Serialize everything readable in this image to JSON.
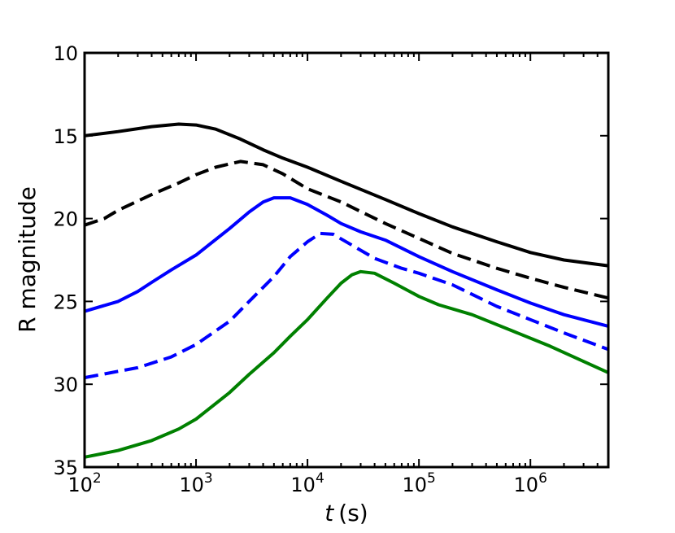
{
  "chart_data": {
    "type": "line",
    "title": "",
    "xlabel": "t",
    "xlabel_unit": "(s)",
    "ylabel": "R magnitude",
    "xscale": "log",
    "xlim": [
      100,
      5000000
    ],
    "ylim": [
      10,
      35
    ],
    "y_inverted": true,
    "grid": false,
    "legend": "none",
    "x_ticks": [
      {
        "value": 100,
        "base": "10",
        "exp": "2"
      },
      {
        "value": 1000,
        "base": "10",
        "exp": "3"
      },
      {
        "value": 10000,
        "base": "10",
        "exp": "4"
      },
      {
        "value": 100000,
        "base": "10",
        "exp": "5"
      },
      {
        "value": 1000000,
        "base": "10",
        "exp": "6"
      }
    ],
    "y_ticks": [
      {
        "value": 10,
        "label": "10"
      },
      {
        "value": 15,
        "label": "15"
      },
      {
        "value": 20,
        "label": "20"
      },
      {
        "value": 25,
        "label": "25"
      },
      {
        "value": 30,
        "label": "30"
      },
      {
        "value": 35,
        "label": "35"
      }
    ],
    "series": [
      {
        "name": "black-solid",
        "color": "#000000",
        "style": "solid",
        "points": [
          [
            100,
            15.0
          ],
          [
            200,
            14.75
          ],
          [
            400,
            14.45
          ],
          [
            700,
            14.3
          ],
          [
            1000,
            14.35
          ],
          [
            1500,
            14.6
          ],
          [
            2500,
            15.2
          ],
          [
            4000,
            15.85
          ],
          [
            6000,
            16.35
          ],
          [
            10000,
            16.9
          ],
          [
            20000,
            17.75
          ],
          [
            50000,
            18.85
          ],
          [
            100000,
            19.7
          ],
          [
            200000,
            20.5
          ],
          [
            500000,
            21.4
          ],
          [
            1000000,
            22.05
          ],
          [
            2000000,
            22.5
          ],
          [
            5000000,
            22.85
          ]
        ]
      },
      {
        "name": "black-dashed",
        "color": "#000000",
        "style": "dashed",
        "points": [
          [
            100,
            20.4
          ],
          [
            150,
            20.0
          ],
          [
            200,
            19.5
          ],
          [
            400,
            18.55
          ],
          [
            700,
            17.85
          ],
          [
            1000,
            17.35
          ],
          [
            1500,
            16.9
          ],
          [
            2500,
            16.55
          ],
          [
            4000,
            16.75
          ],
          [
            6000,
            17.3
          ],
          [
            10000,
            18.2
          ],
          [
            20000,
            19.0
          ],
          [
            50000,
            20.3
          ],
          [
            100000,
            21.2
          ],
          [
            200000,
            22.1
          ],
          [
            500000,
            23.0
          ],
          [
            1000000,
            23.6
          ],
          [
            2000000,
            24.15
          ],
          [
            5000000,
            24.8
          ]
        ]
      },
      {
        "name": "blue-solid",
        "color": "#0000ff",
        "style": "solid",
        "points": [
          [
            100,
            25.6
          ],
          [
            200,
            25.0
          ],
          [
            300,
            24.4
          ],
          [
            400,
            23.85
          ],
          [
            600,
            23.1
          ],
          [
            1000,
            22.2
          ],
          [
            2000,
            20.6
          ],
          [
            3000,
            19.6
          ],
          [
            4000,
            19.0
          ],
          [
            5000,
            18.75
          ],
          [
            7000,
            18.75
          ],
          [
            10000,
            19.15
          ],
          [
            15000,
            19.8
          ],
          [
            20000,
            20.3
          ],
          [
            30000,
            20.8
          ],
          [
            50000,
            21.3
          ],
          [
            100000,
            22.3
          ],
          [
            200000,
            23.2
          ],
          [
            500000,
            24.3
          ],
          [
            1000000,
            25.1
          ],
          [
            2000000,
            25.8
          ],
          [
            5000000,
            26.5
          ]
        ]
      },
      {
        "name": "blue-dashed",
        "color": "#0000ff",
        "style": "dashed",
        "points": [
          [
            100,
            29.6
          ],
          [
            300,
            29.0
          ],
          [
            600,
            28.35
          ],
          [
            1000,
            27.6
          ],
          [
            2000,
            26.2
          ],
          [
            3000,
            25.0
          ],
          [
            5000,
            23.5
          ],
          [
            7000,
            22.3
          ],
          [
            10000,
            21.4
          ],
          [
            13000,
            20.9
          ],
          [
            17000,
            20.95
          ],
          [
            25000,
            21.6
          ],
          [
            40000,
            22.4
          ],
          [
            70000,
            23.0
          ],
          [
            100000,
            23.3
          ],
          [
            200000,
            24.0
          ],
          [
            500000,
            25.3
          ],
          [
            1000000,
            26.1
          ],
          [
            2000000,
            26.9
          ],
          [
            5000000,
            27.9
          ]
        ]
      },
      {
        "name": "green-solid",
        "color": "#008000",
        "style": "solid",
        "points": [
          [
            100,
            34.4
          ],
          [
            200,
            34.0
          ],
          [
            400,
            33.4
          ],
          [
            700,
            32.7
          ],
          [
            1000,
            32.1
          ],
          [
            2000,
            30.5
          ],
          [
            3000,
            29.4
          ],
          [
            5000,
            28.1
          ],
          [
            7000,
            27.1
          ],
          [
            10000,
            26.1
          ],
          [
            15000,
            24.8
          ],
          [
            20000,
            23.9
          ],
          [
            25000,
            23.4
          ],
          [
            30000,
            23.2
          ],
          [
            40000,
            23.3
          ],
          [
            60000,
            23.9
          ],
          [
            100000,
            24.7
          ],
          [
            150000,
            25.2
          ],
          [
            300000,
            25.8
          ],
          [
            700000,
            26.8
          ],
          [
            1500000,
            27.7
          ],
          [
            5000000,
            29.3
          ]
        ]
      }
    ]
  }
}
